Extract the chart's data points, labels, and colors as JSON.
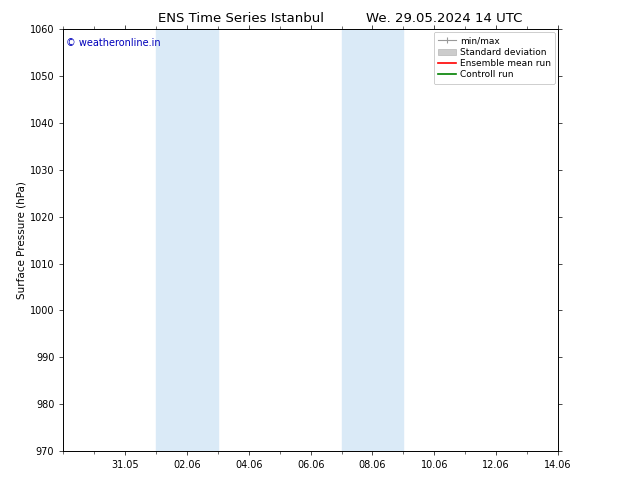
{
  "title_left": "ENS Time Series Istanbul",
  "title_right": "We. 29.05.2024 14 UTC",
  "ylabel": "Surface Pressure (hPa)",
  "ylim": [
    970,
    1060
  ],
  "yticks": [
    970,
    980,
    990,
    1000,
    1010,
    1020,
    1030,
    1040,
    1050,
    1060
  ],
  "xlim": [
    0,
    16
  ],
  "xtick_labels": [
    "31.05",
    "02.06",
    "04.06",
    "06.06",
    "08.06",
    "10.06",
    "12.06",
    "14.06"
  ],
  "xtick_positions": [
    2,
    4,
    6,
    8,
    10,
    12,
    14,
    16
  ],
  "shade_bands": [
    {
      "x_start": 3.0,
      "x_end": 5.0
    },
    {
      "x_start": 9.0,
      "x_end": 11.0
    }
  ],
  "shade_color": "#daeaf7",
  "watermark_text": "© weatheronline.in",
  "watermark_color": "#0000bb",
  "background_color": "#ffffff",
  "legend_labels": [
    "min/max",
    "Standard deviation",
    "Ensemble mean run",
    "Controll run"
  ],
  "minmax_color": "#999999",
  "stddev_color": "#cccccc",
  "ensemble_color": "#ff0000",
  "control_color": "#008000",
  "title_fontsize": 9.5,
  "axis_label_fontsize": 7.5,
  "tick_fontsize": 7,
  "legend_fontsize": 6.5,
  "watermark_fontsize": 7
}
